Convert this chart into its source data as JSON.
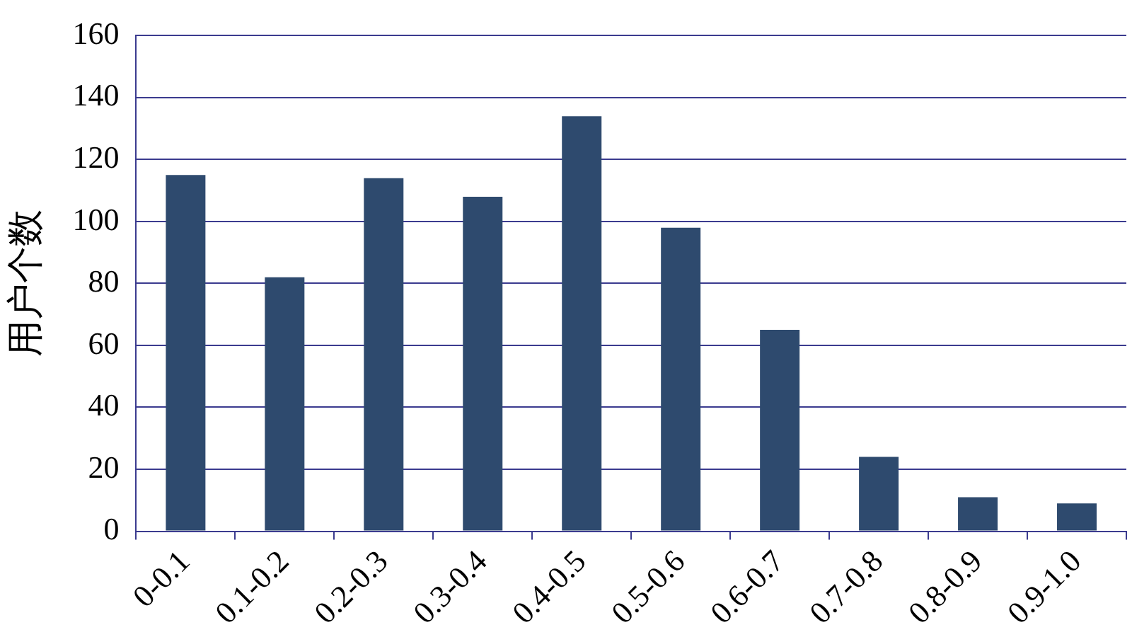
{
  "chart_data": {
    "type": "bar",
    "ylabel": "用户个数",
    "categories": [
      "0-0.1",
      "0.1-0.2",
      "0.2-0.3",
      "0.3-0.4",
      "0.4-0.5",
      "0.5-0.6",
      "0.6-0.7",
      "0.7-0.8",
      "0.8-0.9",
      "0.9-1.0"
    ],
    "values": [
      115,
      82,
      114,
      108,
      134,
      98,
      65,
      24,
      11,
      9
    ],
    "color": "#2e4a6e",
    "ylim": [
      0,
      160
    ],
    "yticks": [
      0,
      20,
      40,
      60,
      80,
      100,
      120,
      140,
      160
    ],
    "grid": "y"
  }
}
